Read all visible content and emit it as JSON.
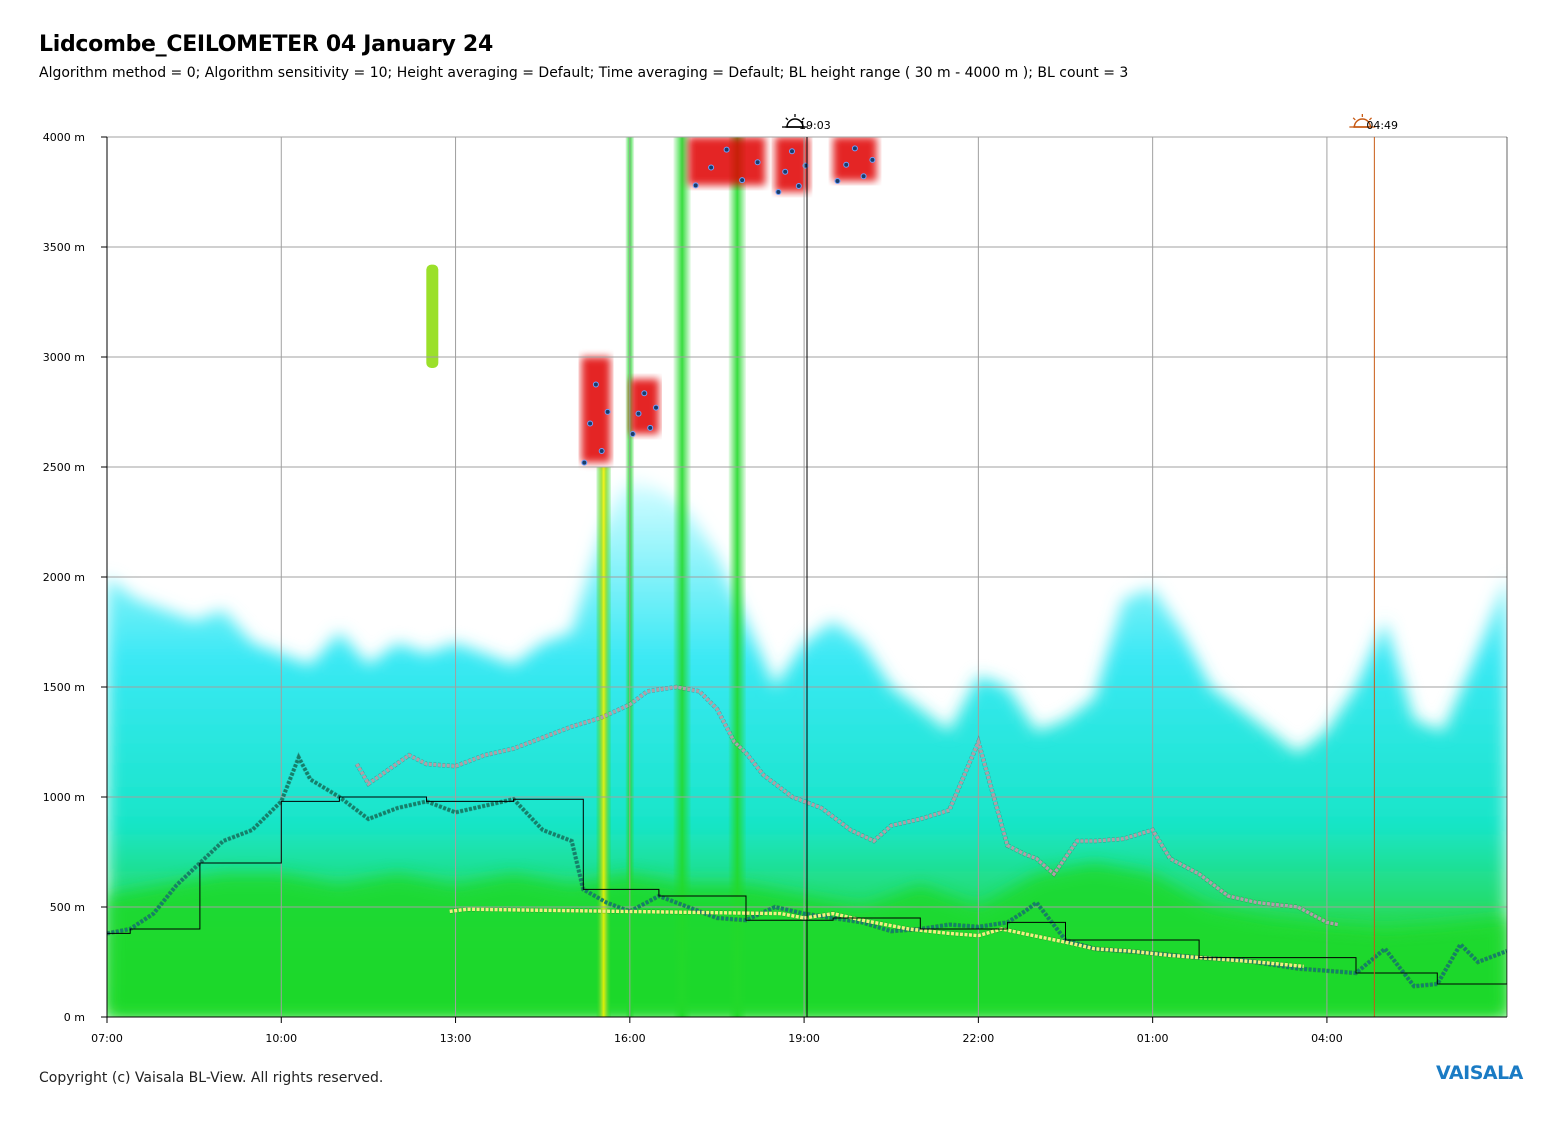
{
  "title": "Lidcombe_CEILOMETER 04 January 24",
  "subtitle": "Algorithm method = 0; Algorithm sensitivity = 10; Height averaging = Default; Time averaging = Default; BL height range ( 30 m - 4000 m ); BL count = 3",
  "copyright": "Copyright (c) Vaisala BL-View. All rights reserved.",
  "logo": "VAISALA",
  "colors": {
    "grid": "#a0a0a0",
    "backscatter_low": "#bff7ff",
    "backscatter_mid": "#00e6f0",
    "backscatter_high": "#22d92a",
    "backscatter_peak": "#f2f200",
    "cloud": "#e00000",
    "bl_layer1": "#14806a",
    "bl_layer2": "#b0a0a8",
    "bl_layer3": "#f0f080",
    "sunset": "#000000",
    "sunrise": "#c85a14"
  },
  "chart_data": {
    "type": "heatmap",
    "description_units": "time (hh:mm, 04-05 Jan 2024) vs height (m)",
    "xlabel": "",
    "ylabel": "",
    "x_ticks": [
      "07:00",
      "10:00",
      "13:00",
      "16:00",
      "19:00",
      "22:00",
      "01:00",
      "04:00"
    ],
    "y_ticks": [
      "0 m",
      "500 m",
      "1000 m",
      "1500 m",
      "2000 m",
      "2500 m",
      "3000 m",
      "3500 m",
      "4000 m"
    ],
    "xlim_hours": [
      7.0,
      31.1
    ],
    "ylim": [
      0,
      4000
    ],
    "grid": true,
    "markers": [
      {
        "type": "sunset",
        "icon": "sunset-icon",
        "time": "19:03"
      },
      {
        "type": "sunrise",
        "icon": "sunrise-icon",
        "time": "04:49"
      }
    ],
    "series": [
      {
        "layer": 1,
        "color": "#14806a",
        "points": [
          [
            7.0,
            380
          ],
          [
            7.4,
            400
          ],
          [
            7.8,
            470
          ],
          [
            8.2,
            600
          ],
          [
            8.6,
            700
          ],
          [
            9.0,
            800
          ],
          [
            9.5,
            850
          ],
          [
            10.0,
            980
          ],
          [
            10.3,
            1180
          ],
          [
            10.5,
            1080
          ],
          [
            11.0,
            1000
          ],
          [
            11.5,
            900
          ],
          [
            12.0,
            950
          ],
          [
            12.5,
            980
          ],
          [
            13.0,
            930
          ],
          [
            13.5,
            960
          ],
          [
            14.0,
            990
          ],
          [
            14.5,
            850
          ],
          [
            15.0,
            800
          ],
          [
            15.2,
            580
          ],
          [
            15.6,
            520
          ],
          [
            16.0,
            480
          ],
          [
            16.5,
            550
          ],
          [
            17.0,
            500
          ],
          [
            17.5,
            450
          ],
          [
            18.0,
            440
          ],
          [
            18.5,
            500
          ],
          [
            19.0,
            470
          ],
          [
            19.5,
            450
          ],
          [
            20.0,
            430
          ],
          [
            20.5,
            390
          ],
          [
            21.0,
            400
          ],
          [
            21.5,
            420
          ],
          [
            22.0,
            410
          ],
          [
            22.5,
            430
          ],
          [
            22.8,
            480
          ],
          [
            23.0,
            520
          ],
          [
            23.5,
            350
          ],
          [
            24.0,
            310
          ],
          [
            25.0,
            290
          ],
          [
            25.8,
            270
          ],
          [
            26.5,
            260
          ],
          [
            27.5,
            220
          ],
          [
            28.5,
            200
          ],
          [
            29.0,
            310
          ],
          [
            29.5,
            140
          ],
          [
            29.9,
            150
          ],
          [
            30.3,
            330
          ],
          [
            30.6,
            250
          ],
          [
            31.1,
            300
          ]
        ]
      },
      {
        "layer": 2,
        "color": "#b0a0a8",
        "points": [
          [
            11.3,
            1150
          ],
          [
            11.5,
            1060
          ],
          [
            12.2,
            1190
          ],
          [
            12.5,
            1150
          ],
          [
            13.0,
            1140
          ],
          [
            13.5,
            1190
          ],
          [
            14.0,
            1220
          ],
          [
            14.5,
            1270
          ],
          [
            15.0,
            1320
          ],
          [
            15.5,
            1360
          ],
          [
            16.0,
            1420
          ],
          [
            16.3,
            1480
          ],
          [
            16.8,
            1500
          ],
          [
            17.2,
            1480
          ],
          [
            17.5,
            1400
          ],
          [
            17.8,
            1250
          ],
          [
            18.0,
            1200
          ],
          [
            18.3,
            1100
          ],
          [
            18.8,
            1000
          ],
          [
            19.3,
            950
          ],
          [
            19.8,
            850
          ],
          [
            20.2,
            800
          ],
          [
            20.5,
            870
          ],
          [
            21.0,
            900
          ],
          [
            21.5,
            940
          ],
          [
            22.0,
            1250
          ],
          [
            22.5,
            780
          ],
          [
            22.8,
            740
          ],
          [
            23.0,
            720
          ],
          [
            23.3,
            650
          ],
          [
            23.7,
            800
          ],
          [
            24.0,
            800
          ],
          [
            24.5,
            810
          ],
          [
            25.0,
            850
          ],
          [
            25.3,
            720
          ],
          [
            25.8,
            650
          ],
          [
            26.3,
            550
          ],
          [
            26.8,
            520
          ],
          [
            27.5,
            500
          ],
          [
            28.0,
            430
          ],
          [
            28.2,
            420
          ]
        ]
      },
      {
        "layer": 3,
        "color": "#f0f080",
        "points": [
          [
            12.9,
            480
          ],
          [
            13.2,
            490
          ],
          [
            18.6,
            470
          ],
          [
            19.0,
            450
          ],
          [
            19.5,
            470
          ],
          [
            20.0,
            440
          ],
          [
            20.8,
            400
          ],
          [
            21.5,
            380
          ],
          [
            22.0,
            370
          ],
          [
            22.4,
            400
          ],
          [
            23.5,
            340
          ],
          [
            24.0,
            310
          ],
          [
            24.6,
            300
          ],
          [
            25.3,
            280
          ],
          [
            25.8,
            270
          ],
          [
            26.3,
            260
          ],
          [
            26.8,
            250
          ],
          [
            27.2,
            240
          ],
          [
            27.6,
            230
          ]
        ]
      }
    ],
    "clouds": [
      {
        "start": "15:10",
        "end": "15:40",
        "bottom": 2520,
        "top": 3000
      },
      {
        "start": "16:00",
        "end": "16:30",
        "bottom": 2650,
        "top": 2900
      },
      {
        "start": "17:00",
        "end": "18:20",
        "bottom": 3780,
        "top": 4000
      },
      {
        "start": "18:30",
        "end": "19:05",
        "bottom": 3750,
        "top": 4000
      },
      {
        "start": "19:30",
        "end": "20:15",
        "bottom": 3800,
        "top": 4000
      }
    ]
  }
}
